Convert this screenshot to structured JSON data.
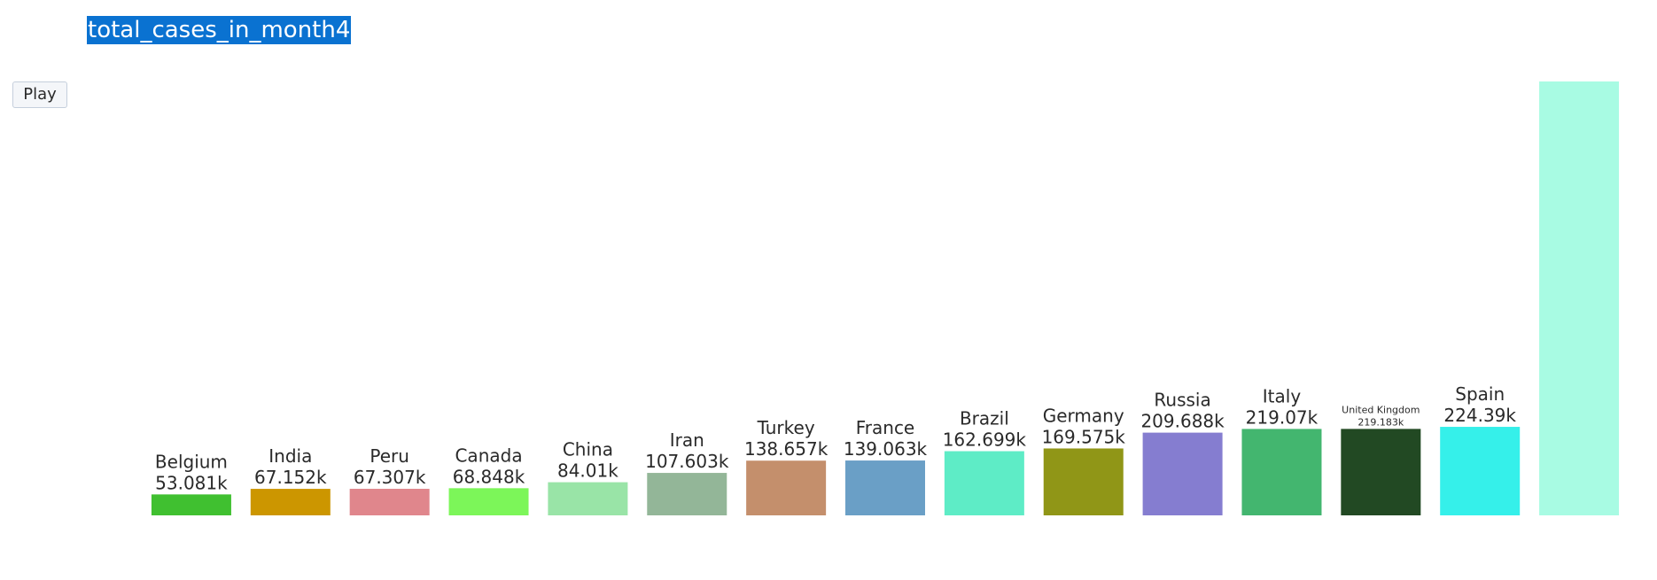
{
  "title": "total_cases_in_month4",
  "controls": {
    "play_label": "Play"
  },
  "chart_data": {
    "type": "bar",
    "title": "total_cases_in_month4",
    "xlabel": "",
    "ylabel": "",
    "categories": [
      "Belgium",
      "India",
      "Peru",
      "Canada",
      "China",
      "Iran",
      "Turkey",
      "France",
      "Brazil",
      "Germany",
      "Russia",
      "Italy",
      "United Kingdom",
      "Spain",
      ""
    ],
    "values": [
      53081,
      67152,
      67307,
      68848,
      84010,
      107603,
      138657,
      139063,
      162699,
      169575,
      209688,
      219070,
      219183,
      224390,
      1100000
    ],
    "data_labels": [
      "53.081k",
      "67.152k",
      "67.307k",
      "68.848k",
      "84.01k",
      "107.603k",
      "138.657k",
      "139.063k",
      "162.699k",
      "169.575k",
      "209.688k",
      "219.07k",
      "219.183k",
      "224.39k",
      ""
    ],
    "small_label_categories": [
      "United Kingdom"
    ],
    "colors": [
      "#40c030",
      "#cc9600",
      "#e0868c",
      "#7cf659",
      "#99e4a7",
      "#93b698",
      "#c48f6c",
      "#6a9fc6",
      "#5eecc6",
      "#909617",
      "#857dd0",
      "#43b66f",
      "#224923",
      "#35f0ea",
      "#a8fbe3"
    ],
    "ylim": [
      0,
      1100000
    ],
    "grid": false,
    "legend": "none"
  }
}
